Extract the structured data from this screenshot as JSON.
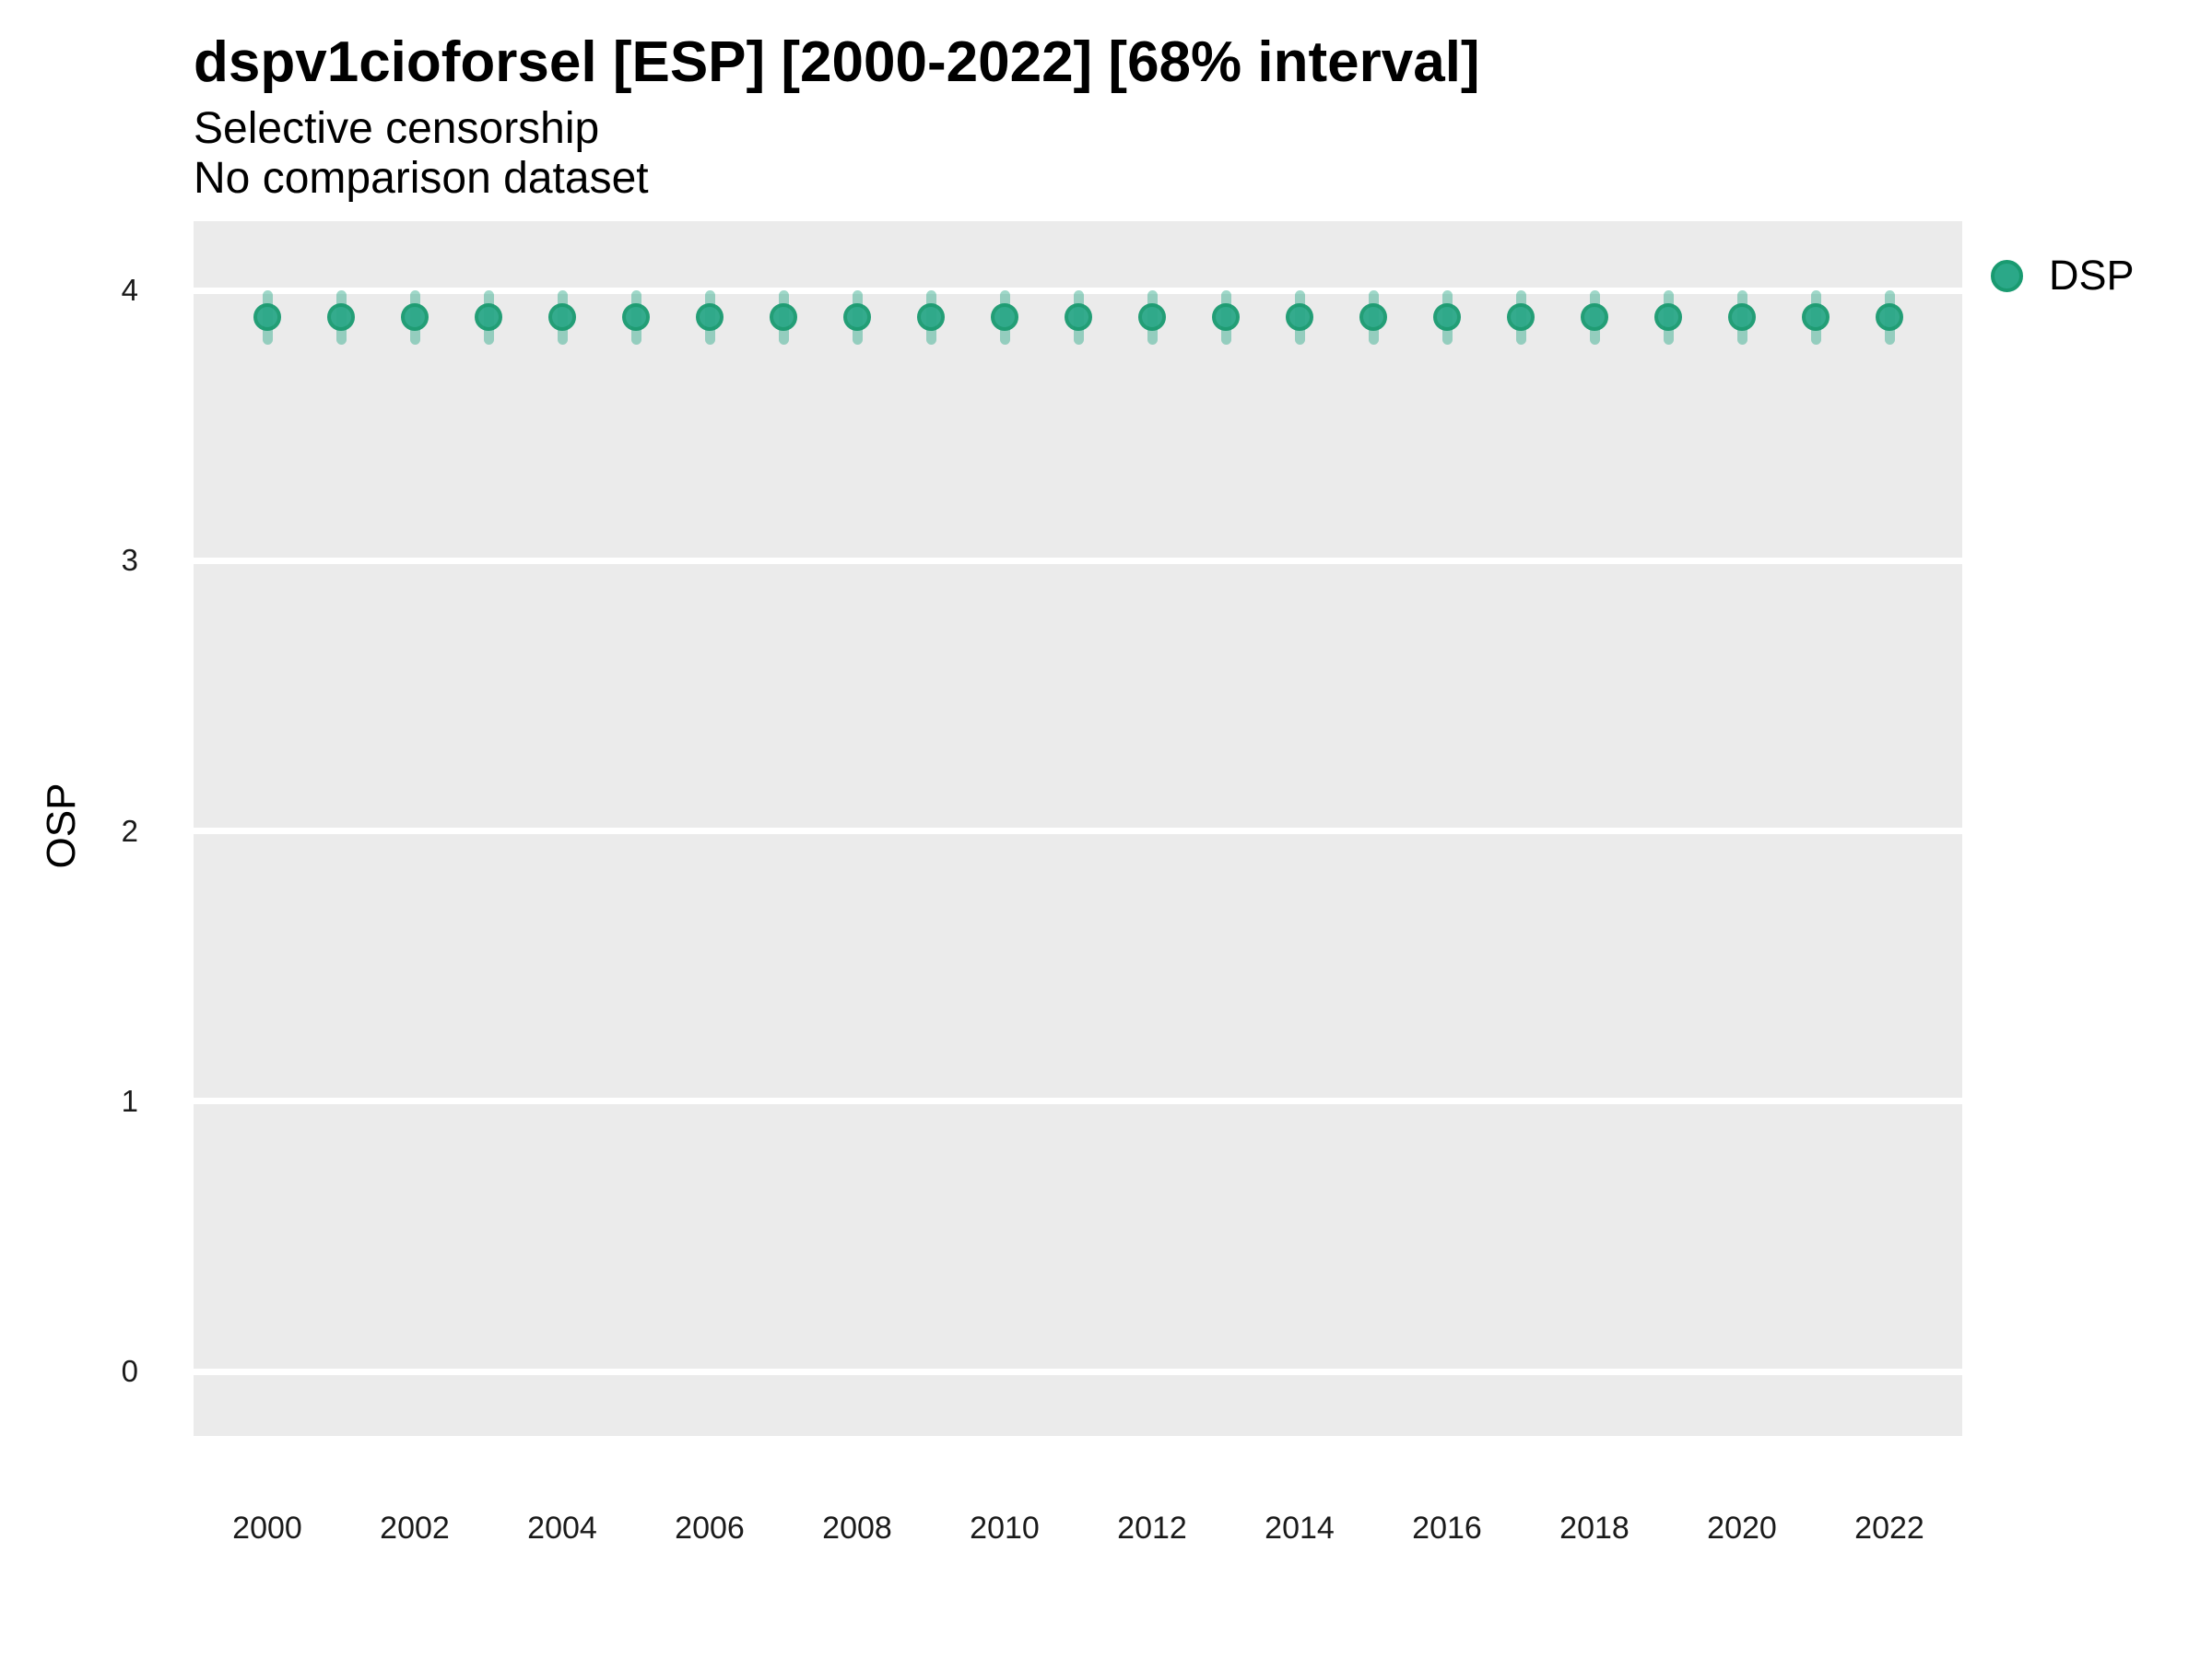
{
  "chart_data": {
    "type": "scatter",
    "title": "dspv1cioforsel [ESP] [2000-2022] [68% interval]",
    "subtitle_lines": [
      "Selective censorship",
      "No comparison dataset"
    ],
    "xlabel": "",
    "ylabel": "OSP",
    "interval_label": "68% interval",
    "ylim": [
      -0.24,
      4.26
    ],
    "yticks": [
      0,
      1,
      2,
      3,
      4
    ],
    "xticks": [
      2000,
      2002,
      2004,
      2006,
      2008,
      2010,
      2012,
      2014,
      2016,
      2018,
      2020,
      2022
    ],
    "grid": "major-horizontal-white",
    "panel_bg": "#EBEBEB",
    "gridline_color": "#FFFFFF",
    "legend_position": "right-top",
    "series": [
      {
        "name": "DSP",
        "point_fill": "#2BA888",
        "point_stroke": "#199A70",
        "errorbar_color": "rgba(43,168,136,0.45)",
        "points": [
          {
            "x": 2000,
            "y": 3.9,
            "lo": 3.8,
            "hi": 4.0
          },
          {
            "x": 2001,
            "y": 3.9,
            "lo": 3.8,
            "hi": 4.0
          },
          {
            "x": 2002,
            "y": 3.9,
            "lo": 3.8,
            "hi": 4.0
          },
          {
            "x": 2003,
            "y": 3.9,
            "lo": 3.8,
            "hi": 4.0
          },
          {
            "x": 2004,
            "y": 3.9,
            "lo": 3.8,
            "hi": 4.0
          },
          {
            "x": 2005,
            "y": 3.9,
            "lo": 3.8,
            "hi": 4.0
          },
          {
            "x": 2006,
            "y": 3.9,
            "lo": 3.8,
            "hi": 4.0
          },
          {
            "x": 2007,
            "y": 3.9,
            "lo": 3.8,
            "hi": 4.0
          },
          {
            "x": 2008,
            "y": 3.9,
            "lo": 3.8,
            "hi": 4.0
          },
          {
            "x": 2009,
            "y": 3.9,
            "lo": 3.8,
            "hi": 4.0
          },
          {
            "x": 2010,
            "y": 3.9,
            "lo": 3.8,
            "hi": 4.0
          },
          {
            "x": 2011,
            "y": 3.9,
            "lo": 3.8,
            "hi": 4.0
          },
          {
            "x": 2012,
            "y": 3.9,
            "lo": 3.8,
            "hi": 4.0
          },
          {
            "x": 2013,
            "y": 3.9,
            "lo": 3.8,
            "hi": 4.0
          },
          {
            "x": 2014,
            "y": 3.9,
            "lo": 3.8,
            "hi": 4.0
          },
          {
            "x": 2015,
            "y": 3.9,
            "lo": 3.8,
            "hi": 4.0
          },
          {
            "x": 2016,
            "y": 3.9,
            "lo": 3.8,
            "hi": 4.0
          },
          {
            "x": 2017,
            "y": 3.9,
            "lo": 3.8,
            "hi": 4.0
          },
          {
            "x": 2018,
            "y": 3.9,
            "lo": 3.8,
            "hi": 4.0
          },
          {
            "x": 2019,
            "y": 3.9,
            "lo": 3.8,
            "hi": 4.0
          },
          {
            "x": 2020,
            "y": 3.9,
            "lo": 3.8,
            "hi": 4.0
          },
          {
            "x": 2021,
            "y": 3.9,
            "lo": 3.8,
            "hi": 4.0
          },
          {
            "x": 2022,
            "y": 3.9,
            "lo": 3.8,
            "hi": 4.0
          }
        ]
      }
    ]
  }
}
